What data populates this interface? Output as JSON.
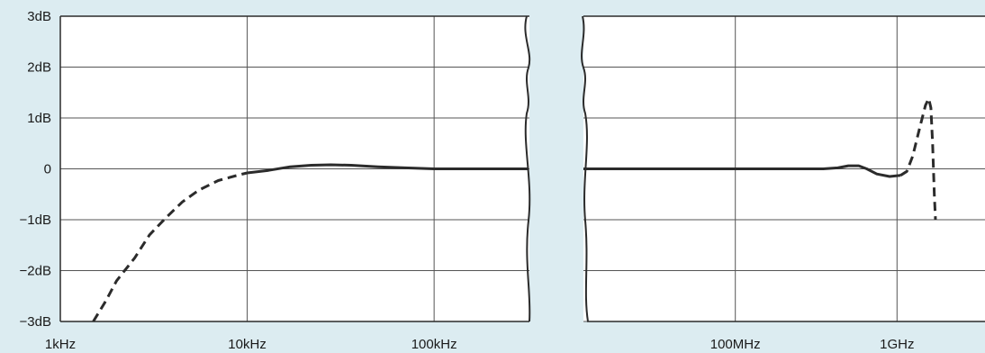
{
  "chart_data": {
    "type": "line",
    "title": "",
    "xlabel": "",
    "ylabel": "",
    "ylim": [
      -3,
      3
    ],
    "y_ticks": [
      {
        "value": 3,
        "label": "3dB"
      },
      {
        "value": 2,
        "label": "2dB"
      },
      {
        "value": 1,
        "label": "1dB"
      },
      {
        "value": 0,
        "label": "0"
      },
      {
        "value": -1,
        "label": "−1dB"
      },
      {
        "value": -2,
        "label": "−2dB"
      },
      {
        "value": -3,
        "label": "−3dB"
      }
    ],
    "grid": true,
    "x_scale": "log",
    "x_axis_break": true,
    "panels": [
      {
        "xlim_hz": [
          1000,
          320000
        ],
        "x_ticks": [
          {
            "value": 1000,
            "label": "1kHz"
          },
          {
            "value": 10000,
            "label": "10kHz"
          },
          {
            "value": 100000,
            "label": "100kHz"
          }
        ],
        "series": [
          {
            "style": "dashed",
            "points": [
              [
                1500,
                -3.0
              ],
              [
                1750,
                -2.6
              ],
              [
                2000,
                -2.2
              ],
              [
                2500,
                -1.75
              ],
              [
                3000,
                -1.3
              ],
              [
                3700,
                -0.95
              ],
              [
                4500,
                -0.65
              ],
              [
                5500,
                -0.42
              ],
              [
                7000,
                -0.23
              ],
              [
                9000,
                -0.12
              ],
              [
                10000,
                -0.08
              ]
            ]
          },
          {
            "style": "solid",
            "points": [
              [
                10000,
                -0.08
              ],
              [
                13000,
                -0.03
              ],
              [
                17000,
                0.04
              ],
              [
                22000,
                0.07
              ],
              [
                28000,
                0.08
              ],
              [
                36000,
                0.07
              ],
              [
                50000,
                0.04
              ],
              [
                70000,
                0.02
              ],
              [
                100000,
                0.0
              ],
              [
                140000,
                0.0
              ],
              [
                220000,
                0.0
              ],
              [
                320000,
                0.0
              ]
            ]
          }
        ]
      },
      {
        "xlim_hz": [
          11500000,
          3500000000
        ],
        "x_ticks": [
          {
            "value": 100000000,
            "label": "100MHz"
          },
          {
            "value": 1000000000,
            "label": "1GHz"
          }
        ],
        "series": [
          {
            "style": "solid",
            "points": [
              [
                11500000,
                0.0
              ],
              [
                100000000,
                0.0
              ],
              [
                350000000,
                0.0
              ],
              [
                430000000,
                0.02
              ],
              [
                500000000,
                0.06
              ],
              [
                580000000,
                0.06
              ],
              [
                650000000,
                0.0
              ],
              [
                750000000,
                -0.1
              ],
              [
                900000000,
                -0.15
              ],
              [
                1050000000,
                -0.13
              ]
            ]
          },
          {
            "style": "dashed",
            "points": [
              [
                1050000000,
                -0.13
              ],
              [
                1150000000,
                -0.05
              ],
              [
                1250000000,
                0.25
              ],
              [
                1380000000,
                0.8
              ],
              [
                1500000000,
                1.25
              ],
              [
                1570000000,
                1.38
              ],
              [
                1620000000,
                1.2
              ],
              [
                1660000000,
                0.5
              ],
              [
                1700000000,
                -0.5
              ],
              [
                1730000000,
                -1.0
              ]
            ]
          }
        ]
      }
    ]
  }
}
